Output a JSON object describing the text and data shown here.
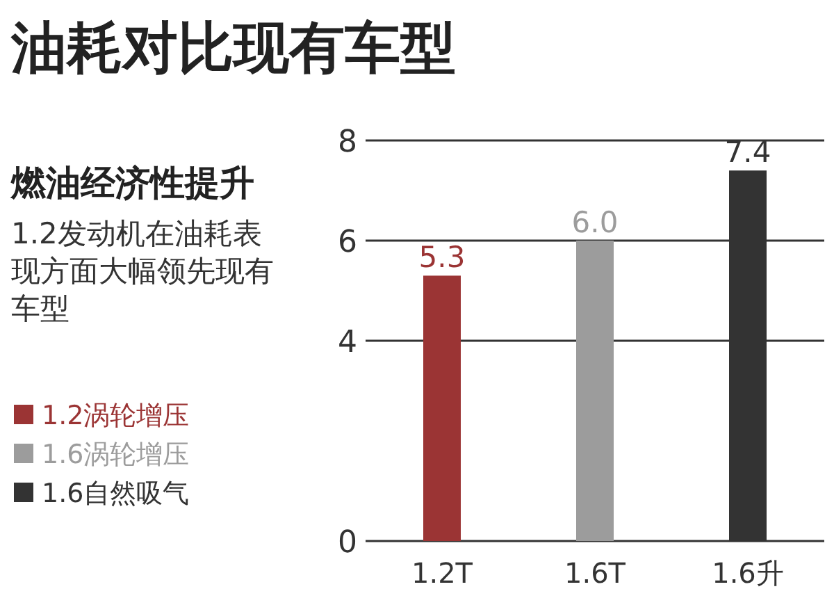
{
  "chart_data": {
    "type": "bar",
    "title": "油耗对比现有车型",
    "subtitle": "燃油经济性提升",
    "annotations": [
      "1.2发动机在油耗表现方面大幅领先现有车型"
    ],
    "categories": [
      "1.2T",
      "1.6T",
      "1.6升"
    ],
    "series": [
      {
        "name": "1.2涡轮增压",
        "color": "#9b3434",
        "values": [
          5.3,
          null,
          null
        ],
        "value_labels": [
          "5.3",
          null,
          null
        ]
      },
      {
        "name": "1.6涡轮增压",
        "color": "#9c9c9c",
        "values": [
          null,
          6.0,
          null
        ],
        "value_labels": [
          null,
          "6.0",
          null
        ]
      },
      {
        "name": "1.6自然吸气",
        "color": "#333333",
        "values": [
          null,
          null,
          7.4
        ],
        "value_labels": [
          null,
          null,
          "7.4"
        ]
      }
    ],
    "ylim": [
      0,
      8
    ],
    "yticks": [
      0,
      4,
      6,
      8
    ],
    "grid": "y",
    "legend": "left"
  }
}
